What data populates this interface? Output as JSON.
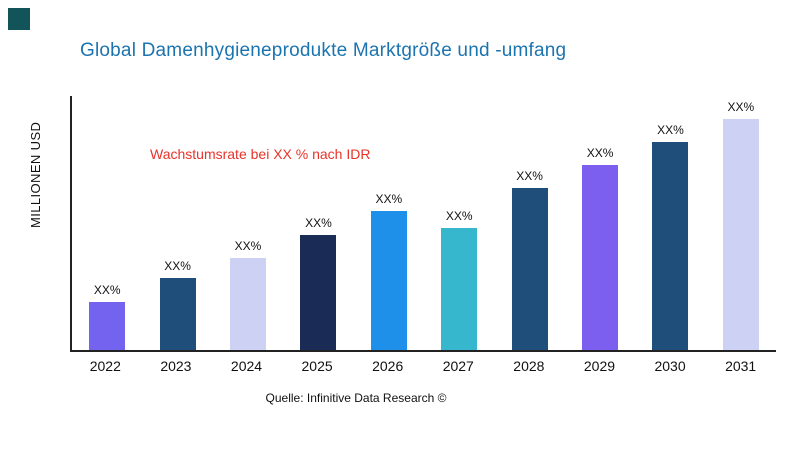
{
  "page": {
    "corner_square_color": "#12545a",
    "title_color": "#1b74b0"
  },
  "chart_data": {
    "type": "bar",
    "title": "Global Damenhygieneprodukte Marktgröße und -umfang",
    "ylabel": "MILLIONEN USD",
    "xlabel": "",
    "annotation": "Wachstumsrate bei XX % nach IDR",
    "annotation_color": "#e8332a",
    "source": "Quelle: Infinitive Data Research ©",
    "categories": [
      "2022",
      "2023",
      "2024",
      "2025",
      "2026",
      "2027",
      "2028",
      "2029",
      "2030",
      "2031"
    ],
    "values": [
      21,
      31,
      40,
      50,
      60,
      53,
      70,
      80,
      90,
      100
    ],
    "bar_labels": [
      "XX%",
      "XX%",
      "XX%",
      "XX%",
      "XX%",
      "XX%",
      "XX%",
      "XX%",
      "XX%",
      "XX%"
    ],
    "bar_colors": [
      "#7463ef",
      "#1f4e7a",
      "#cdd1f4",
      "#1a2b55",
      "#1f90ea",
      "#36b7cd",
      "#1f4e7a",
      "#7d5ff0",
      "#1f4e7a",
      "#cdd1f4"
    ],
    "ylim": [
      0,
      110
    ],
    "grid": false,
    "legend": "none"
  }
}
